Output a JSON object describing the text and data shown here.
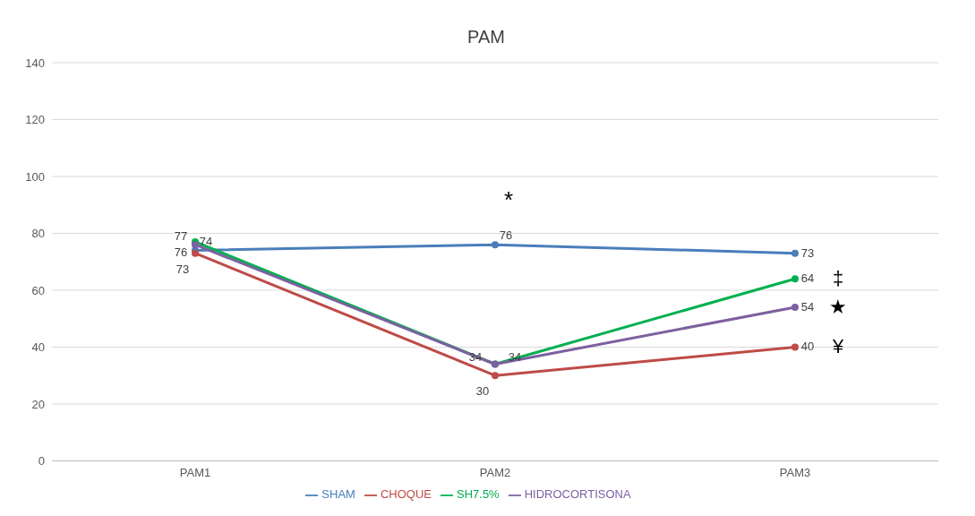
{
  "chart_data": {
    "type": "line",
    "title": "PAM",
    "categories": [
      "PAM1",
      "PAM2",
      "PAM3"
    ],
    "series": [
      {
        "name": "SHAM",
        "color": "#4a7ebb",
        "values": [
          74,
          76,
          73
        ]
      },
      {
        "name": "CHOQUE",
        "color": "#be4b48",
        "values": [
          73,
          30,
          40
        ]
      },
      {
        "name": "SH7.5%",
        "color": "#00b050",
        "values": [
          77,
          34,
          64
        ]
      },
      {
        "name": "HIDROCORTISONA",
        "color": "#7d60a0",
        "values": [
          76,
          34,
          54
        ]
      }
    ],
    "ylim": [
      0,
      140
    ],
    "yticks": [
      0,
      20,
      40,
      60,
      80,
      100,
      120,
      140
    ],
    "grid": "y",
    "legend": "bottom",
    "marker": "circle",
    "line_style": "solid",
    "data_labels": true,
    "annotations": [
      "*",
      {
        "text": "‡",
        "x": "PAM3",
        "y": 64
      },
      {
        "text": "★",
        "x": "PAM3",
        "y": 54
      },
      {
        "text": "¥",
        "x": "PAM3",
        "y": 40
      }
    ]
  }
}
